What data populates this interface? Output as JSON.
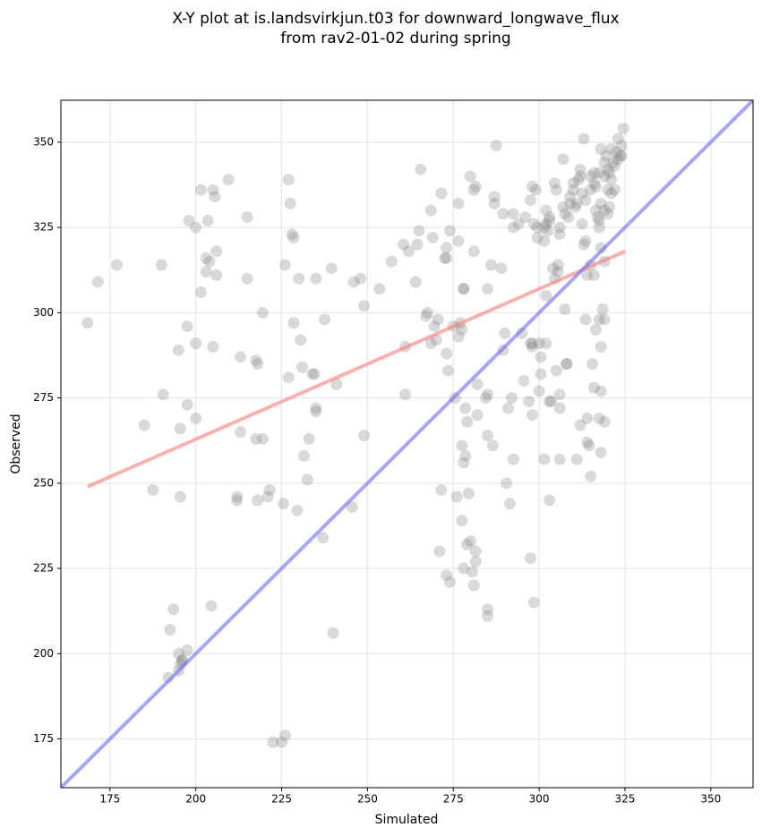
{
  "chart_data": {
    "type": "scatter",
    "title": [
      "X-Y plot at is.landsvirkjun.t03 for downward_longwave_flux",
      "from rav2-01-02 during spring"
    ],
    "xlabel": "Simulated",
    "ylabel": "Observed",
    "xlim": [
      160.7,
      362.3
    ],
    "ylim": [
      160.7,
      362.3
    ],
    "xticks": [
      175,
      200,
      225,
      250,
      275,
      300,
      325,
      350
    ],
    "yticks": [
      175,
      200,
      225,
      250,
      275,
      300,
      325,
      350
    ],
    "grid": true,
    "color": "#808080",
    "x": [
      168.5,
      171.5,
      177,
      190,
      190.5,
      185,
      187.5,
      195,
      195.5,
      195.5,
      197.5,
      197.5,
      198,
      200,
      200,
      200,
      201.5,
      201.5,
      203,
      203,
      203.5,
      204,
      205,
      205,
      206,
      206,
      205.5,
      209.5,
      213,
      213,
      212,
      212,
      215,
      215,
      217.5,
      218,
      217.5,
      218,
      219.5,
      219.5,
      221,
      221.5,
      225.5,
      226,
      227,
      227,
      227.5,
      228,
      228.5,
      228.5,
      229.5,
      230,
      230.5,
      231,
      231.5,
      232.5,
      233,
      234,
      234.5,
      235,
      235,
      235,
      237,
      237.5,
      239.5,
      241,
      240,
      245.5,
      246,
      248,
      249,
      249,
      253.5,
      257,
      260.5,
      261,
      261,
      262,
      264,
      264.5,
      265,
      265.5,
      267,
      267.5,
      268.5,
      268.5,
      269,
      269.5,
      270.5,
      270,
      271,
      271.5,
      271.5,
      272.5,
      273,
      273,
      273,
      273,
      273.5,
      274,
      274,
      275,
      275.5,
      276,
      276.5,
      276.5,
      276.5,
      277,
      277.5,
      277.5,
      277.5,
      278,
      278,
      278,
      278,
      278.5,
      278.5,
      279,
      279,
      279.5,
      280,
      280,
      280.5,
      281,
      281,
      281.5,
      281,
      281.5,
      281.5,
      282,
      282,
      284.5,
      285,
      285,
      285,
      285,
      285,
      286,
      286.5,
      287,
      287,
      287.5,
      289,
      289.5,
      289.5,
      290,
      290.5,
      291,
      291.5,
      292,
      292.5,
      292.5,
      292.5,
      294,
      295.5,
      295,
      296,
      297,
      297.5,
      297.5,
      297.5,
      298,
      298,
      298,
      298,
      298.5,
      298.5,
      299,
      299.5,
      299.5,
      300,
      300,
      300.5,
      300.5,
      301.5,
      301.5,
      301.5,
      302,
      302,
      302,
      302,
      302.5,
      303,
      303,
      303,
      303,
      303.5,
      304,
      304.5,
      304.5,
      305,
      305,
      305.5,
      305.5,
      306,
      306,
      306,
      306,
      306,
      307,
      307,
      307.5,
      307.5,
      308,
      308,
      308.5,
      309,
      309,
      310,
      310,
      310.5,
      311,
      311,
      311.5,
      312,
      312,
      312,
      312.5,
      312.5,
      313,
      313,
      313.5,
      313.5,
      313.5,
      314,
      314,
      314,
      314.5,
      315,
      315,
      315,
      315,
      315.5,
      316,
      316,
      316,
      316,
      316.5,
      316.5,
      316.5,
      317,
      317.5,
      317.5,
      317.5,
      317.5,
      317.5,
      318,
      318,
      318,
      318,
      318,
      318,
      318.5,
      319,
      319,
      319,
      319,
      319,
      319,
      319.5,
      320,
      320,
      320,
      320.5,
      320.5,
      321,
      321,
      321,
      321.5,
      322,
      322,
      322.5,
      323,
      323,
      323.5,
      324,
      324,
      324.5,
      192,
      192.5,
      193.5,
      195,
      195,
      195.5,
      196,
      196,
      197.5,
      204.5,
      222.5,
      225,
      226
    ],
    "values": [
      297,
      309,
      314,
      314,
      276,
      267,
      248,
      289,
      266,
      246,
      273,
      296,
      327,
      325,
      291,
      269,
      306,
      336,
      312,
      316,
      327,
      315,
      336,
      290,
      318,
      311,
      334,
      339,
      287,
      265,
      246,
      245,
      328,
      310,
      286,
      285,
      263,
      245,
      263,
      300,
      246,
      248,
      244,
      314,
      281,
      339,
      332,
      323,
      322,
      297,
      242,
      310,
      292,
      284,
      258,
      251,
      263,
      282,
      282,
      272,
      271,
      310,
      234,
      298,
      313,
      279,
      206,
      243,
      309,
      310,
      302,
      264,
      307,
      315,
      320,
      276,
      290,
      318,
      309,
      320,
      324,
      342,
      299,
      300,
      291,
      330,
      322,
      296,
      298,
      292,
      230,
      248,
      335,
      316,
      319,
      288,
      316,
      223,
      283,
      324,
      221,
      296,
      275,
      246,
      293,
      332,
      321,
      297,
      295,
      239,
      261,
      256,
      307,
      307,
      225,
      272,
      258,
      232,
      268,
      247,
      233,
      340,
      224,
      318,
      336,
      337,
      220,
      227,
      230,
      270,
      279,
      275,
      276,
      264,
      307,
      213,
      211,
      314,
      261,
      334,
      332,
      349,
      313,
      289,
      329,
      294,
      250,
      272,
      244,
      275,
      257,
      325,
      329,
      326,
      280,
      294,
      328,
      274,
      333,
      291,
      228,
      337,
      270,
      290,
      291,
      215,
      326,
      336,
      322,
      325,
      291,
      277,
      287,
      282,
      321,
      325,
      257,
      330,
      305,
      326,
      291,
      324,
      327,
      328,
      245,
      274,
      274,
      313,
      310,
      338,
      283,
      336,
      314,
      312,
      325,
      323,
      276,
      272,
      257,
      331,
      345,
      301,
      329,
      285,
      285,
      328,
      332,
      334,
      338,
      336,
      331,
      257,
      332,
      339,
      342,
      340,
      267,
      335,
      326,
      351,
      320,
      333,
      321,
      298,
      311,
      269,
      262,
      261,
      336,
      340,
      314,
      252,
      285,
      341,
      338,
      311,
      278,
      337,
      330,
      295,
      328,
      325,
      327,
      341,
      298,
      269,
      319,
      348,
      332,
      277,
      290,
      259,
      301,
      340,
      344,
      330,
      315,
      298,
      268,
      346,
      342,
      336,
      329,
      331,
      341,
      335,
      348,
      339,
      344,
      336,
      343,
      347,
      345,
      351,
      346,
      346,
      349,
      354,
      193,
      207,
      213,
      195,
      200,
      197,
      198,
      198,
      201,
      214,
      174,
      174,
      176
    ],
    "lines": [
      {
        "x": [
          168.5,
          325
        ],
        "values": [
          249,
          318
        ],
        "color": "#f87c7c"
      },
      {
        "x": [
          160.7,
          362.3
        ],
        "values": [
          160.7,
          362.3
        ],
        "color": "#6b6bf0"
      }
    ]
  }
}
